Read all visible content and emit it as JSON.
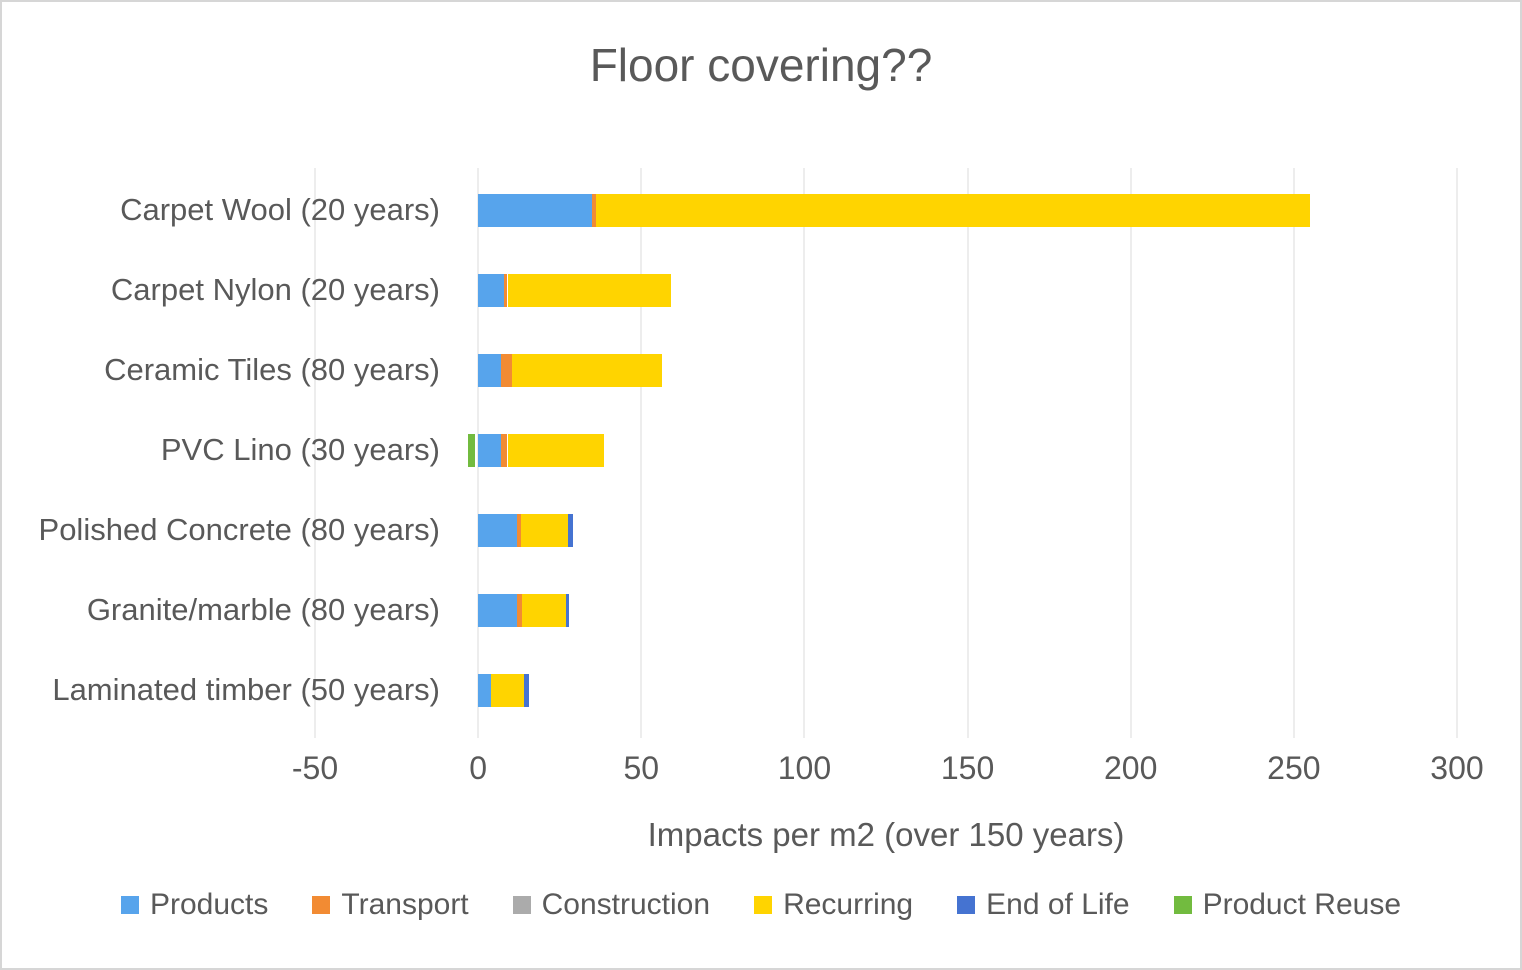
{
  "chart_data": {
    "type": "bar",
    "orientation": "horizontal",
    "stacked": true,
    "title": "Floor covering??",
    "xlabel": "Impacts per m2 (over 150 years)",
    "xlim": [
      -50,
      300
    ],
    "xticks": [
      -50,
      0,
      50,
      100,
      150,
      200,
      250,
      300
    ],
    "grid": true,
    "legend_position": "bottom",
    "categories": [
      "Carpet Wool (20 years)",
      "Carpet Nylon (20 years)",
      "Ceramic Tiles (80 years)",
      "PVC Lino (30 years)",
      "Polished Concrete (80 years)",
      "Granite/marble (80 years)",
      "Laminated timber (50 years)"
    ],
    "series": [
      {
        "name": "Products",
        "color": "#57A4EC",
        "values": [
          35,
          8,
          7,
          7,
          12,
          12,
          4
        ]
      },
      {
        "name": "Transport",
        "color": "#F28B33",
        "values": [
          1,
          1,
          3.5,
          2,
          1,
          1.5,
          0
        ]
      },
      {
        "name": "Construction",
        "color": "#ABABAB",
        "values": [
          0,
          0,
          0,
          0,
          0,
          0,
          0
        ]
      },
      {
        "name": "Recurring",
        "color": "#FFD400",
        "values": [
          219,
          50,
          46,
          29.5,
          14.5,
          13.5,
          10
        ]
      },
      {
        "name": "End of Life",
        "color": "#4573D1",
        "values": [
          0,
          0,
          0,
          0,
          1.5,
          0.7,
          1.5
        ]
      },
      {
        "name": "Product Reuse",
        "color": "#72BB3F",
        "values": [
          0,
          0,
          0,
          -2.2,
          0,
          0,
          0
        ]
      }
    ],
    "approx_totals": [
      255,
      59,
      56.5,
      38.5,
      29,
      27.7,
      15.5
    ]
  },
  "styles": {
    "text_color": "#595959",
    "gridline_color": "#EDEDED",
    "background": "#FFFFFF",
    "border_color": "#D6D6D6"
  }
}
